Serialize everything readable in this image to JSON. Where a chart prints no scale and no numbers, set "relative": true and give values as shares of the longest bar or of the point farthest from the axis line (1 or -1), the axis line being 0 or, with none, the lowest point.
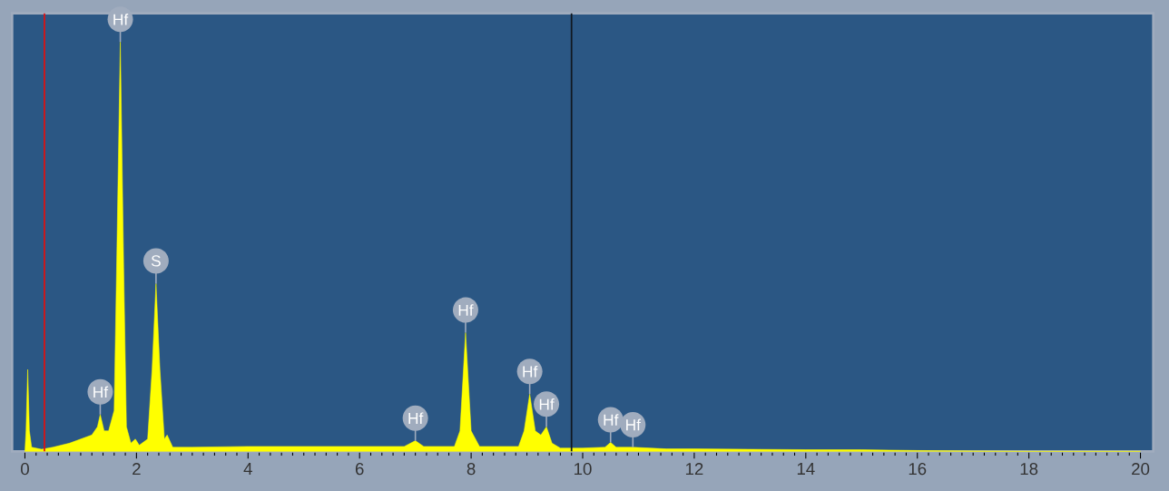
{
  "chart_data": {
    "type": "area",
    "relative": true,
    "color": "#ffff00",
    "x": [
      0,
      0.02,
      0.05,
      0.08,
      0.12,
      0.3,
      0.5,
      0.8,
      1.0,
      1.2,
      1.3,
      1.35,
      1.42,
      1.5,
      1.6,
      1.65,
      1.71,
      1.77,
      1.82,
      1.9,
      1.98,
      2.05,
      2.2,
      2.28,
      2.35,
      2.42,
      2.5,
      2.55,
      2.65,
      3,
      4,
      5,
      6,
      6.8,
      7.0,
      7.15,
      7.7,
      7.8,
      7.9,
      8.0,
      8.15,
      8.85,
      8.95,
      9.05,
      9.15,
      9.25,
      9.35,
      9.45,
      9.6,
      10,
      10.4,
      10.5,
      10.6,
      10.9,
      11.5,
      12,
      13,
      14,
      15,
      16,
      17,
      18,
      20
    ],
    "values": [
      0,
      0.05,
      0.2,
      0.05,
      0.01,
      0.005,
      0.01,
      0.02,
      0.03,
      0.04,
      0.06,
      0.09,
      0.05,
      0.05,
      0.1,
      0.5,
      1,
      0.45,
      0.06,
      0.02,
      0.03,
      0.015,
      0.03,
      0.2,
      0.41,
      0.2,
      0.03,
      0.04,
      0.01,
      0.01,
      0.012,
      0.012,
      0.012,
      0.012,
      0.026,
      0.012,
      0.012,
      0.05,
      0.29,
      0.05,
      0.012,
      0.012,
      0.05,
      0.14,
      0.05,
      0.04,
      0.06,
      0.02,
      0.008,
      0.008,
      0.01,
      0.022,
      0.01,
      0.01,
      0.006,
      0.006,
      0.005,
      0.004,
      0.004,
      0.002,
      0.001,
      0,
      0
    ],
    "xlim": [
      -0.23,
      20.23
    ],
    "xticks": [
      0,
      2,
      4,
      6,
      8,
      10,
      12,
      14,
      16,
      18,
      20
    ],
    "annotations": [
      {
        "text": "Hf",
        "x": 1.35,
        "y": 0.09
      },
      {
        "text": "Hf",
        "x": 1.71,
        "y": 1
      },
      {
        "text": "S",
        "x": 2.35,
        "y": 0.41
      },
      {
        "text": "Hf",
        "x": 7.0,
        "y": 0.026
      },
      {
        "text": "Hf",
        "x": 7.9,
        "y": 0.29
      },
      {
        "text": "Hf",
        "x": 9.05,
        "y": 0.14
      },
      {
        "text": "Hf",
        "x": 9.35,
        "y": 0.06
      },
      {
        "text": "Hf",
        "x": 10.5,
        "y": 0.022
      },
      {
        "text": "Hf",
        "x": 10.9,
        "y": 0.01
      }
    ],
    "ref_lines": [
      {
        "axis": "x",
        "value": 0.35,
        "color": "#e01010"
      },
      {
        "axis": "x",
        "value": 9.8,
        "color": "#101820"
      }
    ],
    "grid": false
  }
}
